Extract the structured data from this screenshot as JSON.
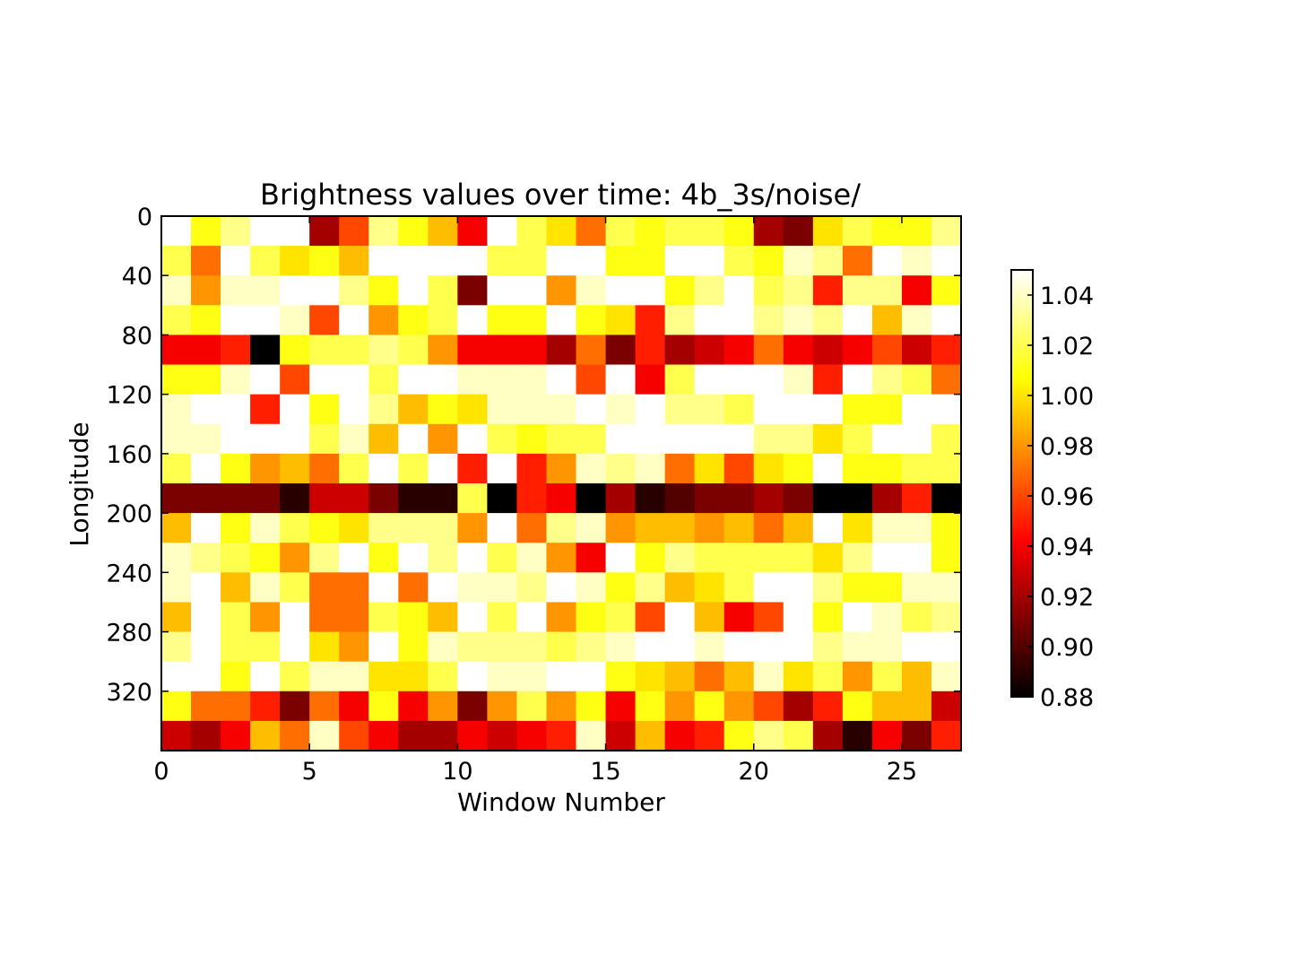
{
  "chart_data": {
    "type": "heatmap",
    "title": "Brightness values over time: 4b_3s/noise/",
    "xlabel": "Window Number",
    "ylabel": "Longitude",
    "x_ticks": [
      "0",
      "5",
      "10",
      "15",
      "20",
      "25"
    ],
    "y_ticks": [
      "0",
      "40",
      "80",
      "120",
      "160",
      "200",
      "240",
      "280",
      "320"
    ],
    "xlim": [
      0,
      27
    ],
    "ylim": [
      360,
      0
    ],
    "y_origin": "top",
    "n_cols": 27,
    "row_step_deg": 20,
    "colormap": "hot",
    "vmin": 0.88,
    "vmax": 1.05,
    "colorbar": {
      "ticks": [
        "0.88",
        "0.90",
        "0.92",
        "0.94",
        "0.96",
        "0.98",
        "1.00",
        "1.02",
        "1.04"
      ]
    },
    "rows": [
      [
        1.05,
        1.01,
        1.03,
        1.05,
        1.05,
        0.92,
        0.96,
        1.03,
        1.01,
        0.99,
        0.94,
        1.05,
        1.02,
        1.0,
        0.97,
        1.02,
        1.01,
        1.02,
        1.02,
        1.01,
        0.92,
        0.91,
        1.0,
        1.02,
        1.01,
        1.01,
        1.03
      ],
      [
        1.02,
        0.97,
        1.05,
        1.02,
        1.0,
        1.01,
        0.99,
        1.05,
        1.05,
        1.05,
        1.05,
        1.02,
        1.02,
        1.05,
        1.05,
        1.01,
        1.01,
        1.05,
        1.05,
        1.02,
        1.01,
        1.04,
        1.03,
        0.97,
        1.05,
        1.04,
        1.05
      ],
      [
        1.04,
        0.98,
        1.04,
        1.04,
        1.05,
        1.05,
        1.03,
        1.01,
        1.05,
        1.02,
        0.91,
        1.05,
        1.05,
        0.98,
        1.04,
        1.05,
        1.05,
        1.01,
        1.03,
        1.05,
        1.02,
        1.03,
        0.95,
        1.03,
        1.03,
        0.94,
        1.01
      ],
      [
        1.02,
        1.01,
        1.05,
        1.05,
        1.04,
        0.96,
        1.05,
        0.98,
        1.01,
        1.02,
        1.05,
        1.01,
        1.01,
        1.05,
        1.01,
        1.0,
        0.95,
        1.03,
        1.05,
        1.05,
        1.03,
        1.04,
        1.03,
        1.05,
        0.99,
        1.04,
        1.05
      ],
      [
        0.94,
        0.94,
        0.95,
        0.88,
        1.01,
        1.02,
        1.02,
        1.03,
        1.02,
        0.98,
        0.94,
        0.94,
        0.94,
        0.92,
        0.97,
        0.91,
        0.95,
        0.92,
        0.93,
        0.94,
        0.97,
        0.94,
        0.93,
        0.94,
        0.96,
        0.93,
        0.95
      ],
      [
        1.01,
        1.01,
        1.04,
        1.05,
        0.96,
        1.05,
        1.05,
        1.02,
        1.05,
        1.05,
        1.04,
        1.04,
        1.04,
        1.05,
        0.96,
        1.05,
        0.94,
        1.02,
        1.05,
        1.05,
        1.05,
        1.04,
        0.95,
        1.05,
        1.03,
        1.02,
        0.97
      ],
      [
        1.04,
        1.05,
        1.05,
        0.95,
        1.05,
        1.01,
        1.05,
        1.03,
        0.99,
        1.01,
        1.0,
        1.04,
        1.04,
        1.04,
        1.05,
        1.04,
        1.05,
        1.03,
        1.03,
        1.02,
        1.05,
        1.05,
        1.05,
        1.01,
        1.01,
        1.05,
        1.05
      ],
      [
        1.04,
        1.04,
        1.05,
        1.05,
        1.05,
        1.02,
        1.04,
        0.99,
        1.05,
        0.98,
        1.05,
        1.02,
        1.01,
        1.02,
        1.02,
        1.05,
        1.05,
        1.05,
        1.05,
        1.05,
        1.03,
        1.03,
        1.0,
        1.02,
        1.05,
        1.05,
        1.02
      ],
      [
        1.02,
        1.05,
        1.01,
        0.98,
        0.99,
        0.97,
        1.02,
        1.05,
        1.02,
        1.05,
        0.95,
        1.05,
        0.95,
        0.98,
        1.04,
        1.03,
        1.04,
        0.97,
        1.0,
        0.96,
        1.0,
        1.01,
        1.05,
        1.01,
        1.01,
        1.02,
        1.02
      ],
      [
        0.91,
        0.91,
        0.91,
        0.91,
        0.89,
        0.93,
        0.93,
        0.91,
        0.89,
        0.89,
        1.02,
        0.88,
        0.95,
        0.94,
        0.88,
        0.92,
        0.89,
        0.9,
        0.91,
        0.91,
        0.92,
        0.91,
        0.88,
        0.88,
        0.92,
        0.95,
        0.88
      ],
      [
        0.99,
        1.05,
        1.01,
        1.04,
        1.02,
        1.01,
        1.0,
        1.03,
        1.03,
        1.03,
        0.98,
        1.05,
        0.97,
        1.03,
        1.04,
        0.98,
        0.99,
        0.99,
        0.98,
        0.99,
        0.97,
        0.99,
        1.05,
        1.0,
        1.04,
        1.04,
        1.01
      ],
      [
        1.04,
        1.03,
        1.02,
        1.01,
        0.98,
        1.03,
        1.05,
        1.01,
        1.05,
        1.03,
        1.05,
        1.02,
        1.04,
        0.98,
        0.94,
        1.05,
        1.01,
        1.03,
        1.02,
        1.02,
        1.02,
        1.02,
        1.0,
        1.03,
        1.05,
        1.05,
        1.01
      ],
      [
        1.04,
        1.05,
        0.99,
        1.04,
        1.02,
        0.97,
        0.97,
        1.05,
        0.97,
        1.05,
        1.04,
        1.04,
        1.03,
        1.05,
        1.04,
        1.01,
        1.03,
        0.99,
        1.0,
        1.02,
        1.05,
        1.05,
        1.03,
        1.01,
        1.01,
        1.04,
        1.04
      ],
      [
        0.99,
        1.05,
        1.02,
        0.98,
        1.05,
        0.97,
        0.97,
        1.02,
        1.01,
        0.99,
        1.05,
        1.02,
        1.05,
        0.98,
        1.01,
        1.02,
        0.96,
        1.05,
        0.99,
        0.94,
        0.96,
        1.05,
        1.01,
        1.05,
        1.04,
        1.02,
        1.03
      ],
      [
        1.03,
        1.05,
        1.02,
        1.02,
        1.05,
        1.0,
        0.98,
        1.05,
        1.01,
        1.04,
        1.03,
        1.03,
        1.03,
        1.02,
        1.03,
        1.04,
        1.05,
        1.05,
        1.04,
        1.05,
        1.05,
        1.05,
        1.03,
        1.04,
        1.04,
        1.05,
        1.05
      ],
      [
        1.05,
        1.05,
        1.01,
        1.05,
        1.02,
        1.04,
        1.04,
        1.0,
        1.0,
        1.02,
        1.05,
        1.04,
        1.04,
        1.05,
        1.05,
        1.01,
        1.0,
        0.99,
        0.97,
        0.99,
        1.04,
        1.0,
        1.02,
        0.98,
        1.02,
        0.99,
        1.04
      ],
      [
        1.01,
        0.97,
        0.97,
        0.95,
        0.91,
        0.97,
        0.94,
        1.01,
        0.94,
        0.98,
        0.91,
        0.98,
        1.02,
        0.98,
        1.01,
        0.94,
        1.01,
        0.98,
        1.01,
        0.98,
        0.96,
        0.92,
        0.95,
        1.01,
        0.99,
        0.99,
        0.93
      ],
      [
        0.93,
        0.92,
        0.94,
        0.99,
        0.97,
        1.04,
        0.96,
        0.94,
        0.92,
        0.92,
        0.94,
        0.93,
        0.94,
        0.95,
        1.04,
        0.93,
        0.99,
        0.94,
        0.95,
        1.01,
        1.03,
        1.02,
        0.92,
        0.89,
        0.94,
        0.91,
        0.95
      ]
    ]
  }
}
